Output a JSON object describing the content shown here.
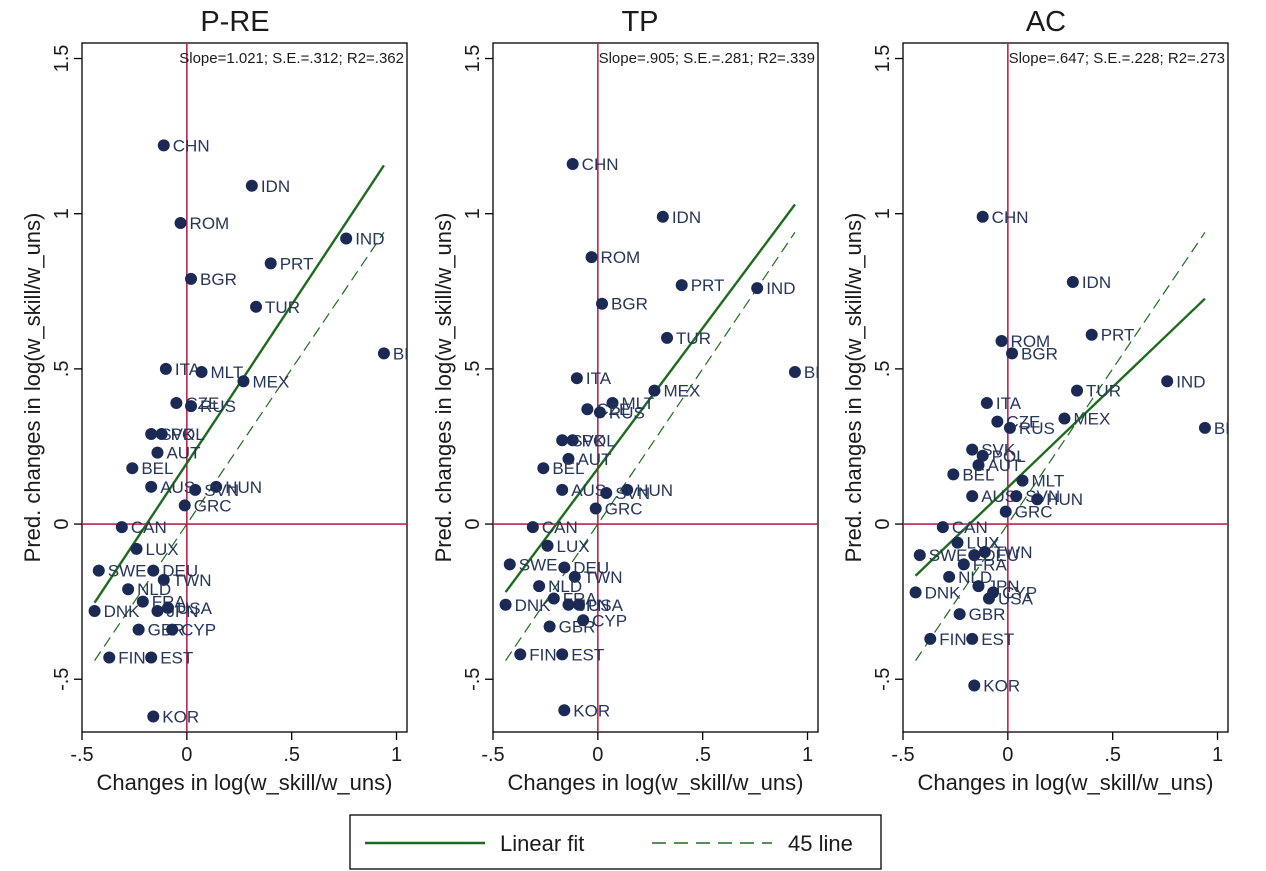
{
  "colors": {
    "marker": "#1a2a55",
    "fit_line": "#1e6b1e",
    "ref_line": "#c0234e",
    "frame": "#000000"
  },
  "legend": {
    "position": "bottom-center",
    "items": [
      {
        "label": "Linear fit",
        "style": "solid"
      },
      {
        "label": "45 line",
        "style": "dashed"
      }
    ]
  },
  "chart_data": [
    {
      "type": "scatter",
      "title": "P-RE",
      "stats": "Slope=1.021; S.E.=.312; R2=.362",
      "xlabel": "Changes in log(w_skill/w_uns)",
      "ylabel": "Pred. changes in log(w_skill/w_uns)",
      "xlim": [
        -0.5,
        1.05
      ],
      "ylim": [
        -0.67,
        1.55
      ],
      "xticks": [
        {
          "v": -0.5,
          "label": "-.5"
        },
        {
          "v": 0,
          "label": "0"
        },
        {
          "v": 0.5,
          "label": ".5"
        },
        {
          "v": 1,
          "label": "1"
        }
      ],
      "yticks": [
        {
          "v": -0.5,
          "label": "-.5"
        },
        {
          "v": 0,
          "label": "0"
        },
        {
          "v": 0.5,
          "label": ".5"
        },
        {
          "v": 1,
          "label": "1"
        },
        {
          "v": 1.5,
          "label": "1.5"
        }
      ],
      "ref_lines": {
        "x": 0,
        "y": 0
      },
      "fit": {
        "slope": 1.021,
        "intercept": 0.196,
        "x_range": [
          -0.44,
          0.94
        ]
      },
      "identity": {
        "x_range": [
          -0.44,
          0.94
        ]
      },
      "grid": false,
      "points": [
        {
          "label": "CHN",
          "x": -0.11,
          "y": 1.22
        },
        {
          "label": "IDN",
          "x": 0.31,
          "y": 1.09
        },
        {
          "label": "ROM",
          "x": -0.03,
          "y": 0.97
        },
        {
          "label": "IND",
          "x": 0.76,
          "y": 0.92
        },
        {
          "label": "PRT",
          "x": 0.4,
          "y": 0.84
        },
        {
          "label": "BGR",
          "x": 0.02,
          "y": 0.79
        },
        {
          "label": "TUR",
          "x": 0.33,
          "y": 0.7
        },
        {
          "label": "BRA",
          "x": 0.94,
          "y": 0.55
        },
        {
          "label": "ITA",
          "x": -0.1,
          "y": 0.5
        },
        {
          "label": "MLT",
          "x": 0.07,
          "y": 0.49
        },
        {
          "label": "MEX",
          "x": 0.27,
          "y": 0.46
        },
        {
          "label": "CZE",
          "x": -0.05,
          "y": 0.39
        },
        {
          "label": "RUS",
          "x": 0.02,
          "y": 0.38
        },
        {
          "label": "SVK",
          "x": -0.17,
          "y": 0.29
        },
        {
          "label": "POL",
          "x": -0.12,
          "y": 0.29
        },
        {
          "label": "AUT",
          "x": -0.14,
          "y": 0.23
        },
        {
          "label": "BEL",
          "x": -0.26,
          "y": 0.18
        },
        {
          "label": "AUS",
          "x": -0.17,
          "y": 0.12
        },
        {
          "label": "HUN",
          "x": 0.14,
          "y": 0.12
        },
        {
          "label": "SVN",
          "x": 0.04,
          "y": 0.11
        },
        {
          "label": "GRC",
          "x": -0.01,
          "y": 0.06
        },
        {
          "label": "CAN",
          "x": -0.31,
          "y": -0.01
        },
        {
          "label": "LUX",
          "x": -0.24,
          "y": -0.08
        },
        {
          "label": "SWE",
          "x": -0.42,
          "y": -0.15
        },
        {
          "label": "DEU",
          "x": -0.16,
          "y": -0.15
        },
        {
          "label": "TWN",
          "x": -0.11,
          "y": -0.18
        },
        {
          "label": "NLD",
          "x": -0.28,
          "y": -0.21
        },
        {
          "label": "FRA",
          "x": -0.21,
          "y": -0.25
        },
        {
          "label": "DNK",
          "x": -0.44,
          "y": -0.28
        },
        {
          "label": "JPN",
          "x": -0.14,
          "y": -0.28
        },
        {
          "label": "USA",
          "x": -0.09,
          "y": -0.27
        },
        {
          "label": "GBR",
          "x": -0.23,
          "y": -0.34
        },
        {
          "label": "CYP",
          "x": -0.07,
          "y": -0.34
        },
        {
          "label": "FIN",
          "x": -0.37,
          "y": -0.43
        },
        {
          "label": "EST",
          "x": -0.17,
          "y": -0.43
        },
        {
          "label": "KOR",
          "x": -0.16,
          "y": -0.62
        }
      ]
    },
    {
      "type": "scatter",
      "title": "TP",
      "stats": "Slope=.905; S.E.=.281; R2=.339",
      "xlabel": "Changes in log(w_skill/w_uns)",
      "ylabel": "Pred. changes in log(w_skill/w_uns)",
      "xlim": [
        -0.5,
        1.05
      ],
      "ylim": [
        -0.67,
        1.55
      ],
      "xticks": [
        {
          "v": -0.5,
          "label": "-.5"
        },
        {
          "v": 0,
          "label": "0"
        },
        {
          "v": 0.5,
          "label": ".5"
        },
        {
          "v": 1,
          "label": "1"
        }
      ],
      "yticks": [
        {
          "v": -0.5,
          "label": "-.5"
        },
        {
          "v": 0,
          "label": "0"
        },
        {
          "v": 0.5,
          "label": ".5"
        },
        {
          "v": 1,
          "label": "1"
        },
        {
          "v": 1.5,
          "label": "1.5"
        }
      ],
      "ref_lines": {
        "x": 0,
        "y": 0
      },
      "fit": {
        "slope": 0.905,
        "intercept": 0.179,
        "x_range": [
          -0.44,
          0.94
        ]
      },
      "identity": {
        "x_range": [
          -0.44,
          0.94
        ]
      },
      "grid": false,
      "points": [
        {
          "label": "CHN",
          "x": -0.12,
          "y": 1.16
        },
        {
          "label": "IDN",
          "x": 0.31,
          "y": 0.99
        },
        {
          "label": "ROM",
          "x": -0.03,
          "y": 0.86
        },
        {
          "label": "PRT",
          "x": 0.4,
          "y": 0.77
        },
        {
          "label": "IND",
          "x": 0.76,
          "y": 0.76
        },
        {
          "label": "BGR",
          "x": 0.02,
          "y": 0.71
        },
        {
          "label": "TUR",
          "x": 0.33,
          "y": 0.6
        },
        {
          "label": "BRA",
          "x": 0.94,
          "y": 0.49
        },
        {
          "label": "ITA",
          "x": -0.1,
          "y": 0.47
        },
        {
          "label": "MEX",
          "x": 0.27,
          "y": 0.43
        },
        {
          "label": "MLT",
          "x": 0.07,
          "y": 0.39
        },
        {
          "label": "CZE",
          "x": -0.05,
          "y": 0.37
        },
        {
          "label": "RUS",
          "x": 0.01,
          "y": 0.36
        },
        {
          "label": "POL",
          "x": -0.12,
          "y": 0.27
        },
        {
          "label": "SVK",
          "x": -0.17,
          "y": 0.27
        },
        {
          "label": "AUT",
          "x": -0.14,
          "y": 0.21
        },
        {
          "label": "BEL",
          "x": -0.26,
          "y": 0.18
        },
        {
          "label": "AUS",
          "x": -0.17,
          "y": 0.11
        },
        {
          "label": "HUN",
          "x": 0.14,
          "y": 0.11
        },
        {
          "label": "SVN",
          "x": 0.04,
          "y": 0.1
        },
        {
          "label": "GRC",
          "x": -0.01,
          "y": 0.05
        },
        {
          "label": "CAN",
          "x": -0.31,
          "y": -0.01
        },
        {
          "label": "LUX",
          "x": -0.24,
          "y": -0.07
        },
        {
          "label": "SWE",
          "x": -0.42,
          "y": -0.13
        },
        {
          "label": "DEU",
          "x": -0.16,
          "y": -0.14
        },
        {
          "label": "TWN",
          "x": -0.11,
          "y": -0.17
        },
        {
          "label": "NLD",
          "x": -0.28,
          "y": -0.2
        },
        {
          "label": "FRA",
          "x": -0.21,
          "y": -0.24
        },
        {
          "label": "DNK",
          "x": -0.44,
          "y": -0.26
        },
        {
          "label": "JPN",
          "x": -0.14,
          "y": -0.26
        },
        {
          "label": "USA",
          "x": -0.09,
          "y": -0.26
        },
        {
          "label": "GBR",
          "x": -0.23,
          "y": -0.33
        },
        {
          "label": "CYP",
          "x": -0.07,
          "y": -0.31
        },
        {
          "label": "FIN",
          "x": -0.37,
          "y": -0.42
        },
        {
          "label": "EST",
          "x": -0.17,
          "y": -0.42
        },
        {
          "label": "KOR",
          "x": -0.16,
          "y": -0.6
        }
      ]
    },
    {
      "type": "scatter",
      "title": "AC",
      "stats": "Slope=.647; S.E.=.228; R2=.273",
      "xlabel": "Changes in log(w_skill/w_uns)",
      "ylabel": "Pred. changes in log(w_skill/w_uns)",
      "xlim": [
        -0.5,
        1.05
      ],
      "ylim": [
        -0.67,
        1.55
      ],
      "xticks": [
        {
          "v": -0.5,
          "label": "-.5"
        },
        {
          "v": 0,
          "label": "0"
        },
        {
          "v": 0.5,
          "label": ".5"
        },
        {
          "v": 1,
          "label": "1"
        }
      ],
      "yticks": [
        {
          "v": -0.5,
          "label": "-.5"
        },
        {
          "v": 0,
          "label": "0"
        },
        {
          "v": 0.5,
          "label": ".5"
        },
        {
          "v": 1,
          "label": "1"
        },
        {
          "v": 1.5,
          "label": "1.5"
        }
      ],
      "ref_lines": {
        "x": 0,
        "y": 0
      },
      "fit": {
        "slope": 0.647,
        "intercept": 0.118,
        "x_range": [
          -0.44,
          0.94
        ]
      },
      "identity": {
        "x_range": [
          -0.44,
          0.94
        ]
      },
      "grid": false,
      "points": [
        {
          "label": "CHN",
          "x": -0.12,
          "y": 0.99
        },
        {
          "label": "IDN",
          "x": 0.31,
          "y": 0.78
        },
        {
          "label": "PRT",
          "x": 0.4,
          "y": 0.61
        },
        {
          "label": "ROM",
          "x": -0.03,
          "y": 0.59
        },
        {
          "label": "BGR",
          "x": 0.02,
          "y": 0.55
        },
        {
          "label": "IND",
          "x": 0.76,
          "y": 0.46
        },
        {
          "label": "TUR",
          "x": 0.33,
          "y": 0.43
        },
        {
          "label": "ITA",
          "x": -0.1,
          "y": 0.39
        },
        {
          "label": "MEX",
          "x": 0.27,
          "y": 0.34
        },
        {
          "label": "CZE",
          "x": -0.05,
          "y": 0.33
        },
        {
          "label": "BRA",
          "x": 0.94,
          "y": 0.31
        },
        {
          "label": "RUS",
          "x": 0.01,
          "y": 0.31
        },
        {
          "label": "SVK",
          "x": -0.17,
          "y": 0.24
        },
        {
          "label": "POL",
          "x": -0.12,
          "y": 0.22
        },
        {
          "label": "AUT",
          "x": -0.14,
          "y": 0.19
        },
        {
          "label": "BEL",
          "x": -0.26,
          "y": 0.16
        },
        {
          "label": "MLT",
          "x": 0.07,
          "y": 0.14
        },
        {
          "label": "AUS",
          "x": -0.17,
          "y": 0.09
        },
        {
          "label": "SVN",
          "x": 0.04,
          "y": 0.09
        },
        {
          "label": "HUN",
          "x": 0.14,
          "y": 0.08
        },
        {
          "label": "GRC",
          "x": -0.01,
          "y": 0.04
        },
        {
          "label": "CAN",
          "x": -0.31,
          "y": -0.01
        },
        {
          "label": "LUX",
          "x": -0.24,
          "y": -0.06
        },
        {
          "label": "SWE",
          "x": -0.42,
          "y": -0.1
        },
        {
          "label": "DEU",
          "x": -0.16,
          "y": -0.1
        },
        {
          "label": "TWN",
          "x": -0.11,
          "y": -0.09
        },
        {
          "label": "NLD",
          "x": -0.28,
          "y": -0.17
        },
        {
          "label": "FRA",
          "x": -0.21,
          "y": -0.13
        },
        {
          "label": "DNK",
          "x": -0.44,
          "y": -0.22
        },
        {
          "label": "JPN",
          "x": -0.14,
          "y": -0.2
        },
        {
          "label": "USA",
          "x": -0.09,
          "y": -0.24
        },
        {
          "label": "CYP",
          "x": -0.07,
          "y": -0.22
        },
        {
          "label": "GBR",
          "x": -0.23,
          "y": -0.29
        },
        {
          "label": "FIN",
          "x": -0.37,
          "y": -0.37
        },
        {
          "label": "EST",
          "x": -0.17,
          "y": -0.37
        },
        {
          "label": "KOR",
          "x": -0.16,
          "y": -0.52
        }
      ]
    }
  ]
}
